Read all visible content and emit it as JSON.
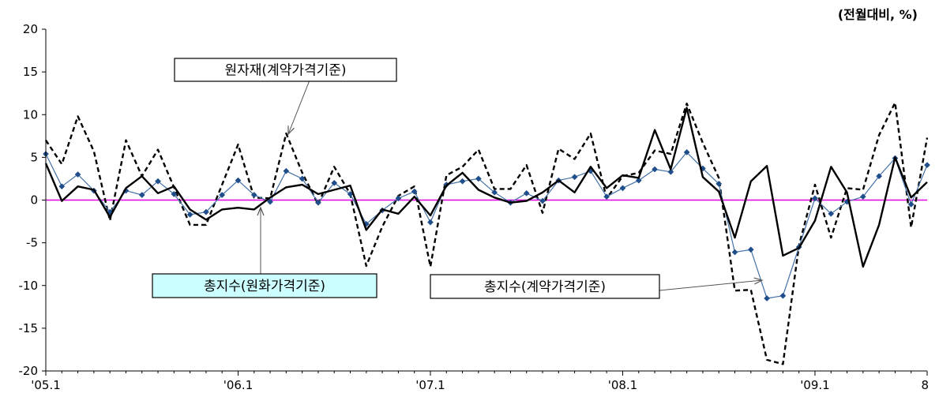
{
  "chart_data": {
    "type": "line",
    "unit_label": "(전월대비, %)",
    "ylim": [
      -20,
      20
    ],
    "yticks": [
      20,
      15,
      10,
      5,
      0,
      -5,
      -10,
      -15,
      -20
    ],
    "xtick_labels": [
      "'05.1",
      "'06.1",
      "'07.1",
      "'08.1",
      "'09.1",
      "8"
    ],
    "x_start": "2005-01",
    "x_end": "2009-08",
    "zero_line_color": "#e000e0",
    "annotations": [
      {
        "text": "원자재(계약가격기준)",
        "box_fill": "#ffffff",
        "target": "contract_raw",
        "target_date": "2006-07"
      },
      {
        "text": "총지수(원화가격기준)",
        "box_fill": "#ccffff",
        "target": "krw_total",
        "target_date": "2006-09"
      },
      {
        "text": "총지수(계약가격기준)",
        "box_fill": "#ffffff",
        "target": "contract_total",
        "target_date": "2008-11"
      }
    ],
    "series": [
      {
        "id": "contract_raw",
        "name": "원자재(계약가격기준)",
        "style": "dashed",
        "color": "#000000",
        "values": [
          7.0,
          4.2,
          9.8,
          5.7,
          -2.4,
          7.0,
          2.8,
          5.9,
          1.5,
          -2.9,
          -2.9,
          1.8,
          6.5,
          0.3,
          0.2,
          7.8,
          3.2,
          -0.5,
          3.9,
          0.7,
          -7.7,
          -3.1,
          0.5,
          1.6,
          -7.8,
          2.9,
          3.9,
          5.9,
          1.3,
          1.3,
          4.1,
          -1.5,
          6.0,
          4.8,
          7.8,
          0.2,
          2.8,
          3.2,
          5.8,
          5.4,
          11.3,
          6.7,
          2.6,
          -10.6,
          -10.5,
          -18.7,
          -19.2,
          -5.3,
          1.8,
          -4.4,
          1.4,
          1.2,
          7.6,
          11.4,
          -3.2,
          7.3
        ]
      },
      {
        "id": "contract_total",
        "name": "총지수(계약가격기준)",
        "style": "solid-markers",
        "color": "#4472a8",
        "marker_color": "#1f4e8a",
        "values": [
          5.4,
          1.6,
          3.0,
          1.1,
          -1.4,
          1.1,
          0.6,
          2.2,
          0.7,
          -1.7,
          -1.4,
          0.6,
          2.3,
          0.6,
          -0.2,
          3.4,
          2.5,
          -0.3,
          2.0,
          0.7,
          -2.8,
          -1.2,
          0.2,
          1.0,
          -2.6,
          1.8,
          2.2,
          2.5,
          0.9,
          -0.3,
          0.8,
          -0.1,
          2.3,
          2.7,
          3.4,
          0.4,
          1.4,
          2.3,
          3.6,
          3.3,
          5.6,
          3.7,
          1.9,
          -6.1,
          -5.8,
          -11.5,
          -11.2,
          -5.5,
          0.2,
          -1.6,
          -0.2,
          0.4,
          2.8,
          4.9,
          -0.5,
          4.1
        ]
      },
      {
        "id": "krw_total",
        "name": "총지수(원화가격기준)",
        "style": "solid",
        "color": "#000000",
        "values": [
          4.3,
          -0.1,
          1.6,
          1.2,
          -2.0,
          1.4,
          2.8,
          0.8,
          1.6,
          -1.1,
          -2.3,
          -1.1,
          -0.9,
          -1.1,
          0.3,
          1.5,
          1.8,
          0.7,
          1.2,
          1.7,
          -3.5,
          -1.1,
          -1.6,
          0.4,
          -1.8,
          1.7,
          3.2,
          1.2,
          0.3,
          -0.3,
          -0.1,
          0.9,
          2.3,
          0.9,
          3.9,
          1.4,
          2.9,
          2.6,
          8.2,
          3.6,
          10.8,
          2.7,
          1.0,
          -4.4,
          2.2,
          4.0,
          -6.5,
          -5.6,
          -2.4,
          3.9,
          0.9,
          -7.8,
          -2.9,
          5.0,
          0.3,
          2.1
        ]
      }
    ]
  }
}
